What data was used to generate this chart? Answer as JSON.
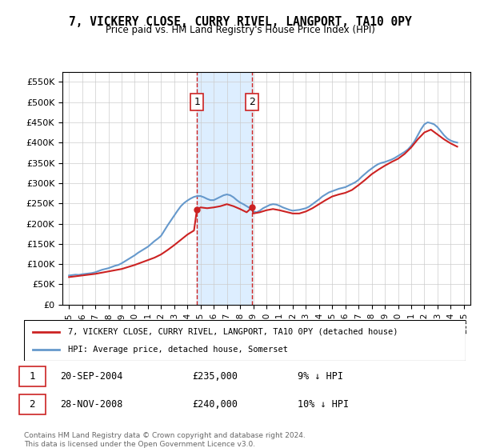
{
  "title": "7, VICKERY CLOSE, CURRY RIVEL, LANGPORT, TA10 0PY",
  "subtitle": "Price paid vs. HM Land Registry's House Price Index (HPI)",
  "footnote": "Contains HM Land Registry data © Crown copyright and database right 2024.\nThis data is licensed under the Open Government Licence v3.0.",
  "legend_line1": "7, VICKERY CLOSE, CURRY RIVEL, LANGPORT, TA10 0PY (detached house)",
  "legend_line2": "HPI: Average price, detached house, Somerset",
  "sale1_label": "1",
  "sale1_date": "20-SEP-2004",
  "sale1_price": "£235,000",
  "sale1_hpi": "9% ↓ HPI",
  "sale2_label": "2",
  "sale2_date": "28-NOV-2008",
  "sale2_price": "£240,000",
  "sale2_hpi": "10% ↓ HPI",
  "sale1_x": 2004.72,
  "sale2_x": 2008.91,
  "sale1_y": 235000,
  "sale2_y": 240000,
  "hpi_color": "#6699cc",
  "price_color": "#cc2222",
  "shade_color": "#ddeeff",
  "grid_color": "#cccccc",
  "background_color": "#ffffff",
  "ylim": [
    0,
    575000
  ],
  "xlim_start": 1994.5,
  "xlim_end": 2025.5,
  "yticks": [
    0,
    50000,
    100000,
    150000,
    200000,
    250000,
    300000,
    350000,
    400000,
    450000,
    500000,
    550000
  ],
  "xticks": [
    1995,
    1996,
    1997,
    1998,
    1999,
    2000,
    2001,
    2002,
    2003,
    2004,
    2005,
    2006,
    2007,
    2008,
    2009,
    2010,
    2011,
    2012,
    2013,
    2014,
    2015,
    2016,
    2017,
    2018,
    2019,
    2020,
    2021,
    2022,
    2023,
    2024,
    2025
  ],
  "hpi_years": [
    1995,
    1995.25,
    1995.5,
    1995.75,
    1996,
    1996.25,
    1996.5,
    1996.75,
    1997,
    1997.25,
    1997.5,
    1997.75,
    1998,
    1998.25,
    1998.5,
    1998.75,
    1999,
    1999.25,
    1999.5,
    1999.75,
    2000,
    2000.25,
    2000.5,
    2000.75,
    2001,
    2001.25,
    2001.5,
    2001.75,
    2002,
    2002.25,
    2002.5,
    2002.75,
    2003,
    2003.25,
    2003.5,
    2003.75,
    2004,
    2004.25,
    2004.5,
    2004.75,
    2005,
    2005.25,
    2005.5,
    2005.75,
    2006,
    2006.25,
    2006.5,
    2006.75,
    2007,
    2007.25,
    2007.5,
    2007.75,
    2008,
    2008.25,
    2008.5,
    2008.75,
    2009,
    2009.25,
    2009.5,
    2009.75,
    2010,
    2010.25,
    2010.5,
    2010.75,
    2011,
    2011.25,
    2011.5,
    2011.75,
    2012,
    2012.25,
    2012.5,
    2012.75,
    2013,
    2013.25,
    2013.5,
    2013.75,
    2014,
    2014.25,
    2014.5,
    2014.75,
    2015,
    2015.25,
    2015.5,
    2015.75,
    2016,
    2016.25,
    2016.5,
    2016.75,
    2017,
    2017.25,
    2017.5,
    2017.75,
    2018,
    2018.25,
    2018.5,
    2018.75,
    2019,
    2019.25,
    2019.5,
    2019.75,
    2020,
    2020.25,
    2020.5,
    2020.75,
    2021,
    2021.25,
    2021.5,
    2021.75,
    2022,
    2022.25,
    2022.5,
    2022.75,
    2023,
    2023.25,
    2023.5,
    2023.75,
    2024,
    2024.25,
    2024.5
  ],
  "hpi_values": [
    72000,
    73000,
    74000,
    73500,
    75000,
    76000,
    77000,
    78000,
    80000,
    83000,
    86000,
    88000,
    90000,
    93000,
    96000,
    98000,
    102000,
    107000,
    112000,
    117000,
    122000,
    128000,
    133000,
    138000,
    143000,
    150000,
    157000,
    163000,
    170000,
    183000,
    196000,
    208000,
    220000,
    232000,
    243000,
    251000,
    257000,
    262000,
    266000,
    268000,
    268000,
    265000,
    261000,
    258000,
    258000,
    262000,
    266000,
    270000,
    272000,
    270000,
    265000,
    258000,
    252000,
    248000,
    243000,
    238000,
    230000,
    228000,
    232000,
    238000,
    242000,
    246000,
    248000,
    247000,
    244000,
    240000,
    237000,
    234000,
    232000,
    233000,
    234000,
    236000,
    238000,
    242000,
    248000,
    254000,
    260000,
    267000,
    272000,
    277000,
    280000,
    283000,
    286000,
    288000,
    290000,
    294000,
    298000,
    302000,
    308000,
    316000,
    323000,
    330000,
    336000,
    342000,
    347000,
    350000,
    352000,
    355000,
    358000,
    362000,
    367000,
    372000,
    377000,
    383000,
    392000,
    403000,
    418000,
    433000,
    445000,
    450000,
    448000,
    445000,
    438000,
    428000,
    418000,
    410000,
    405000,
    402000,
    400000
  ],
  "price_years": [
    1995,
    1995.5,
    1996,
    1996.5,
    1997,
    1997.5,
    1998,
    1998.5,
    1999,
    1999.5,
    2000,
    2000.5,
    2001,
    2001.5,
    2002,
    2002.5,
    2003,
    2003.5,
    2004,
    2004.5,
    2004.72,
    2005,
    2005.5,
    2006,
    2006.5,
    2007,
    2007.5,
    2008,
    2008.5,
    2008.91,
    2009,
    2009.5,
    2010,
    2010.5,
    2011,
    2011.5,
    2012,
    2012.5,
    2013,
    2013.5,
    2014,
    2014.5,
    2015,
    2015.5,
    2016,
    2016.5,
    2017,
    2017.5,
    2018,
    2018.5,
    2019,
    2019.5,
    2020,
    2020.5,
    2021,
    2021.5,
    2022,
    2022.5,
    2023,
    2023.5,
    2024,
    2024.5
  ],
  "price_values": [
    68000,
    70000,
    72000,
    74000,
    76000,
    79000,
    82000,
    85000,
    88000,
    93000,
    98000,
    104000,
    110000,
    116000,
    124000,
    135000,
    147000,
    160000,
    173000,
    183000,
    235000,
    240000,
    238000,
    240000,
    243000,
    248000,
    243000,
    236000,
    228000,
    240000,
    225000,
    228000,
    233000,
    236000,
    233000,
    229000,
    225000,
    225000,
    230000,
    238000,
    248000,
    258000,
    267000,
    272000,
    276000,
    283000,
    295000,
    308000,
    322000,
    333000,
    343000,
    352000,
    360000,
    372000,
    388000,
    408000,
    425000,
    432000,
    420000,
    408000,
    398000,
    390000
  ]
}
